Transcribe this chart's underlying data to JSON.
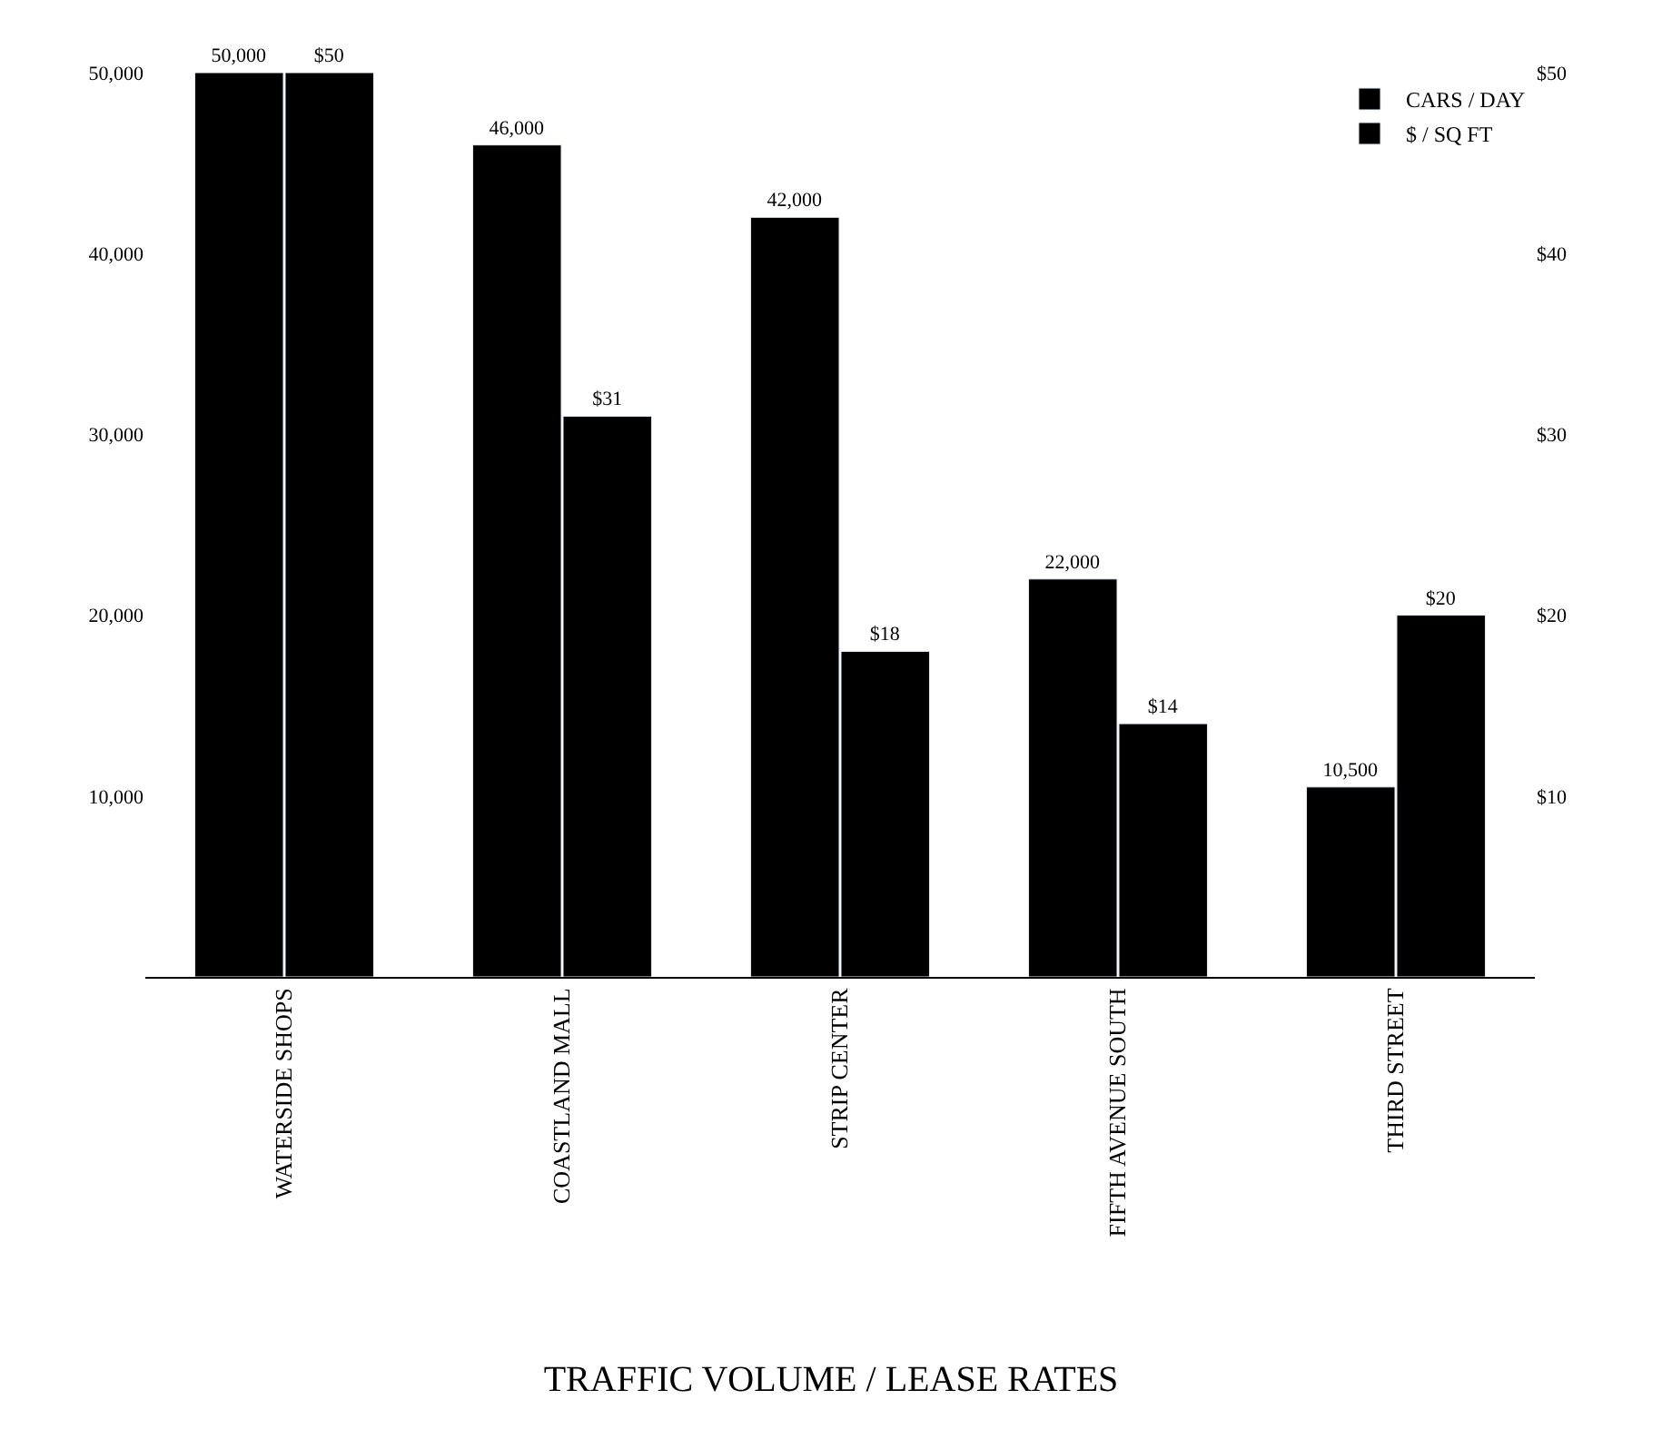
{
  "chart_data": {
    "type": "bar",
    "title": "TRAFFIC VOLUME / LEASE RATES",
    "categories": [
      "WATERSIDE SHOPS",
      "COASTLAND MALL",
      "STRIP CENTER",
      "FIFTH AVENUE SOUTH",
      "THIRD STREET"
    ],
    "series": [
      {
        "name": "CARS / DAY",
        "color": "#000000",
        "values": [
          50000,
          46000,
          42000,
          22000,
          10500
        ],
        "value_labels": [
          "50,000",
          "46,000",
          "42,000",
          "22,000",
          "10,500"
        ]
      },
      {
        "name": "$ / SQ FT",
        "color": "#000000",
        "axis": "y2",
        "values": [
          50,
          31,
          18,
          14,
          20
        ],
        "value_labels": [
          "$50",
          "$31",
          "$18",
          "$14",
          "$20"
        ]
      }
    ],
    "ylim": [
      0,
      50000
    ],
    "yticks": [
      {
        "value": 10000,
        "label": "10,000"
      },
      {
        "value": 20000,
        "label": "20,000"
      },
      {
        "value": 30000,
        "label": "30,000"
      },
      {
        "value": 40000,
        "label": "40,000"
      },
      {
        "value": 50000,
        "label": "50,000"
      }
    ],
    "y2lim": [
      0,
      50
    ],
    "y2ticks": [
      {
        "value": 10,
        "label": "$10"
      },
      {
        "value": 20,
        "label": "$20"
      },
      {
        "value": 30,
        "label": "$30"
      },
      {
        "value": 40,
        "label": "$40"
      },
      {
        "value": 50,
        "label": "$50"
      }
    ],
    "legend": "top right"
  }
}
